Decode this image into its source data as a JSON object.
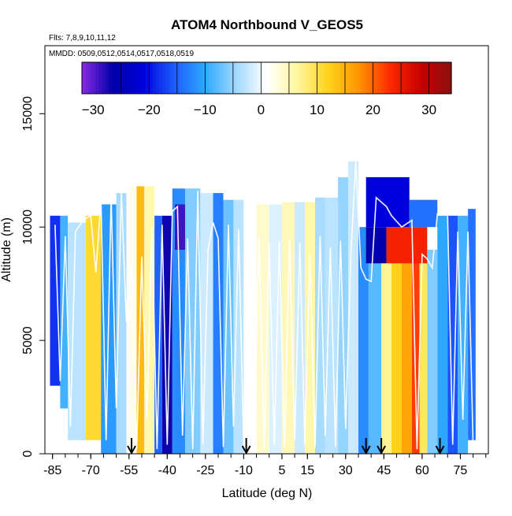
{
  "chart_data": {
    "type": "heatmap",
    "title": "ATOM4 Northbound V_GEOS5",
    "notes": [
      "Flts: 7,8,9,10,11,12",
      "MMDD: 0509,0512,0514,0517,0518,0519"
    ],
    "xlabel": "Latitude (deg N)",
    "ylabel": "Altitude (m)",
    "xlim": [
      -88,
      86
    ],
    "ylim": [
      0,
      18000
    ],
    "x_ticks": [
      -85,
      -70,
      -55,
      -40,
      -25,
      -10,
      5,
      15,
      30,
      45,
      60,
      75
    ],
    "y_ticks": [
      0,
      5000,
      10000,
      15000
    ],
    "colorbar": {
      "range": [
        -32,
        34
      ],
      "ticks": [
        -30,
        -20,
        -10,
        0,
        10,
        20,
        30
      ],
      "colors": [
        "#8a2be2",
        "#0000a8",
        "#0000dd",
        "#1e5cff",
        "#2ea8ff",
        "#9fd8ff",
        "#ffffff",
        "#fff6a0",
        "#ffd21a",
        "#ff9400",
        "#ff2a00",
        "#c80000",
        "#8b1010"
      ]
    },
    "arrows_lat": [
      -54,
      -9,
      38,
      44,
      67
    ],
    "regions": [
      {
        "lat": [
          -86,
          -82
        ],
        "alt": [
          3000,
          10500
        ],
        "value": -18
      },
      {
        "lat": [
          -82,
          -79
        ],
        "alt": [
          2000,
          10500
        ],
        "value": -9
      },
      {
        "lat": [
          -79,
          -72
        ],
        "alt": [
          600,
          10200
        ],
        "value": -3
      },
      {
        "lat": [
          -72,
          -66
        ],
        "alt": [
          600,
          10500
        ],
        "value": 11
      },
      {
        "lat": [
          -66,
          -60
        ],
        "alt": [
          0,
          11000
        ],
        "value": -11
      },
      {
        "lat": [
          -60,
          -56
        ],
        "alt": [
          0,
          11500
        ],
        "value": -4
      },
      {
        "lat": [
          -55,
          -52
        ],
        "alt": [
          0,
          11800
        ],
        "value": 2
      },
      {
        "lat": [
          -52,
          -49
        ],
        "alt": [
          0,
          11800
        ],
        "value": 14
      },
      {
        "lat": [
          -49,
          -45
        ],
        "alt": [
          0,
          11800
        ],
        "value": 6
      },
      {
        "lat": [
          -45,
          -42
        ],
        "alt": [
          0,
          10500
        ],
        "value": -15
      },
      {
        "lat": [
          -42,
          -38
        ],
        "alt": [
          0,
          10500
        ],
        "value": -27
      },
      {
        "lat": [
          -38,
          -33
        ],
        "alt": [
          0,
          11700
        ],
        "value": -12
      },
      {
        "lat": [
          -33,
          -27
        ],
        "alt": [
          0,
          11700
        ],
        "value": -6
      },
      {
        "lat": [
          -27,
          -22
        ],
        "alt": [
          0,
          11500
        ],
        "value": -2
      },
      {
        "lat": [
          -22,
          -18
        ],
        "alt": [
          0,
          11500
        ],
        "value": -13
      },
      {
        "lat": [
          -18,
          -14
        ],
        "alt": [
          0,
          11200
        ],
        "value": -7
      },
      {
        "lat": [
          -14,
          -10
        ],
        "alt": [
          0,
          11200
        ],
        "value": -3
      },
      {
        "lat": [
          -10,
          -5
        ],
        "alt": [
          0,
          11000
        ],
        "value": 1
      },
      {
        "lat": [
          -5,
          0
        ],
        "alt": [
          0,
          11000
        ],
        "value": 4
      },
      {
        "lat": [
          0,
          5
        ],
        "alt": [
          0,
          11000
        ],
        "value": -1
      },
      {
        "lat": [
          5,
          10
        ],
        "alt": [
          0,
          11100
        ],
        "value": 5
      },
      {
        "lat": [
          10,
          14
        ],
        "alt": [
          0,
          11100
        ],
        "value": -2
      },
      {
        "lat": [
          14,
          18
        ],
        "alt": [
          0,
          11100
        ],
        "value": 6
      },
      {
        "lat": [
          18,
          22
        ],
        "alt": [
          0,
          11300
        ],
        "value": -4
      },
      {
        "lat": [
          22,
          27
        ],
        "alt": [
          0,
          11300
        ],
        "value": -3
      },
      {
        "lat": [
          27,
          31
        ],
        "alt": [
          0,
          12200
        ],
        "value": -5
      },
      {
        "lat": [
          31,
          35
        ],
        "alt": [
          0,
          12900
        ],
        "value": -2
      },
      {
        "lat": [
          35,
          39
        ],
        "alt": [
          0,
          10000
        ],
        "value": -12
      },
      {
        "lat": [
          39,
          44
        ],
        "alt": [
          0,
          8500
        ],
        "value": -8
      },
      {
        "lat": [
          44,
          48
        ],
        "alt": [
          0,
          8500
        ],
        "value": 7
      },
      {
        "lat": [
          48,
          52
        ],
        "alt": [
          0,
          8500
        ],
        "value": 12
      },
      {
        "lat": [
          52,
          56
        ],
        "alt": [
          0,
          8500
        ],
        "value": 16
      },
      {
        "lat": [
          56,
          59
        ],
        "alt": [
          0,
          8500
        ],
        "value": 22
      },
      {
        "lat": [
          59,
          62
        ],
        "alt": [
          0,
          8500
        ],
        "value": 9
      },
      {
        "lat": [
          62,
          66
        ],
        "alt": [
          0,
          9000
        ],
        "value": -6
      },
      {
        "lat": [
          66,
          70
        ],
        "alt": [
          0,
          10500
        ],
        "value": -10
      },
      {
        "lat": [
          70,
          74
        ],
        "alt": [
          0,
          10500
        ],
        "value": -16
      },
      {
        "lat": [
          74,
          78
        ],
        "alt": [
          0,
          10500
        ],
        "value": -9
      },
      {
        "lat": [
          78,
          81
        ],
        "alt": [
          600,
          10800
        ],
        "value": -14
      },
      {
        "lat": [
          38,
          55
        ],
        "alt": [
          10000,
          12200
        ],
        "value": -21
      },
      {
        "lat": [
          55,
          66
        ],
        "alt": [
          10000,
          11200
        ],
        "value": -14
      },
      {
        "lat": [
          38,
          46
        ],
        "alt": [
          8400,
          10000
        ],
        "value": -26
      },
      {
        "lat": [
          46,
          62
        ],
        "alt": [
          8400,
          10000
        ],
        "value": 24
      },
      {
        "lat": [
          -37,
          -33
        ],
        "alt": [
          9000,
          11000
        ],
        "value": -29
      }
    ],
    "flight_tracks": [
      [
        [
          -84,
          10100
        ],
        [
          -82,
          3200
        ],
        [
          -80,
          9600
        ],
        [
          -78,
          1200
        ],
        [
          -76,
          9800
        ],
        [
          -73,
          10300
        ],
        [
          -70,
          10500
        ],
        [
          -68,
          8000
        ],
        [
          -66,
          11200
        ],
        [
          -64,
          600
        ],
        [
          -62,
          11400
        ],
        [
          -60,
          2000
        ],
        [
          -58,
          11500
        ],
        [
          -56,
          5800
        ],
        [
          -54,
          8300
        ],
        [
          -52,
          200
        ],
        [
          -50,
          8700
        ],
        [
          -48,
          1500
        ],
        [
          -46,
          10000
        ],
        [
          -44,
          200
        ],
        [
          -42,
          10100
        ],
        [
          -40,
          400
        ],
        [
          -38,
          10700
        ],
        [
          -36,
          10900
        ],
        [
          -34,
          800
        ],
        [
          -32,
          9500
        ],
        [
          -30,
          200
        ],
        [
          -28,
          11600
        ],
        [
          -26,
          400
        ],
        [
          -24,
          9000
        ],
        [
          -22,
          10200
        ],
        [
          -20,
          9500
        ],
        [
          -18,
          300
        ],
        [
          -16,
          10100
        ],
        [
          -14,
          1200
        ],
        [
          -12,
          9900
        ],
        [
          -10,
          300
        ],
        [
          -8,
          8800
        ],
        [
          -6,
          200
        ],
        [
          -4,
          9600
        ],
        [
          -2,
          300
        ],
        [
          0,
          9300
        ],
        [
          2,
          400
        ],
        [
          4,
          9400
        ],
        [
          6,
          300
        ],
        [
          8,
          9500
        ],
        [
          10,
          600
        ],
        [
          12,
          9300
        ],
        [
          14,
          400
        ],
        [
          16,
          8800
        ],
        [
          18,
          300
        ],
        [
          20,
          9600
        ],
        [
          22,
          800
        ],
        [
          24,
          9100
        ],
        [
          26,
          300
        ],
        [
          28,
          9400
        ],
        [
          30,
          1100
        ],
        [
          32,
          8700
        ],
        [
          34,
          12900
        ],
        [
          36,
          8200
        ],
        [
          38,
          7700
        ],
        [
          40,
          7600
        ],
        [
          42,
          11300
        ],
        [
          46,
          10900
        ],
        [
          48,
          10500
        ],
        [
          52,
          10000
        ],
        [
          56,
          10300
        ],
        [
          58,
          200
        ],
        [
          60,
          8800
        ],
        [
          62,
          8600
        ],
        [
          64,
          8200
        ],
        [
          66,
          10600
        ],
        [
          70,
          10600
        ],
        [
          72,
          400
        ],
        [
          74,
          9800
        ],
        [
          76,
          1500
        ],
        [
          78,
          9800
        ],
        [
          80,
          400
        ]
      ]
    ]
  }
}
